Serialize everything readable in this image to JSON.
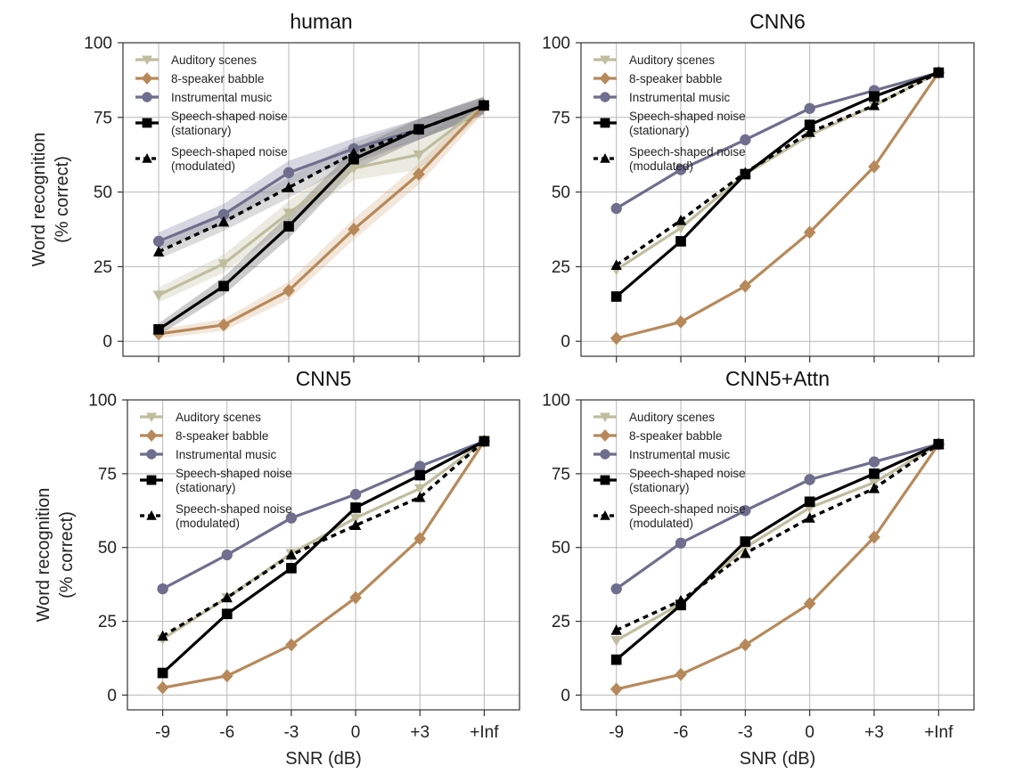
{
  "figure": {
    "xlabel": "SNR (dB)",
    "ylabel_line1": "Word recognition",
    "ylabel_line2": "(% correct)"
  },
  "chart_data": [
    {
      "type": "line",
      "title": "human",
      "categories": [
        "-9",
        "-6",
        "-3",
        "0",
        "+3",
        "+Inf"
      ],
      "ylim": [
        -5,
        100
      ],
      "yticks": [
        0,
        25,
        50,
        75,
        100
      ],
      "grid": true,
      "legend_position": "top-left",
      "series": [
        {
          "name": "Auditory scenes",
          "values": [
            15.5,
            26,
            43,
            58,
            62.5,
            79
          ]
        },
        {
          "name": "8-speaker babble",
          "values": [
            2.5,
            5.5,
            17,
            37.5,
            56,
            79
          ]
        },
        {
          "name": "Instrumental music",
          "values": [
            33.5,
            42.5,
            56.5,
            64.5,
            71,
            79
          ]
        },
        {
          "name": "Speech-shaped noise\n(stationary)",
          "values": [
            4,
            18.5,
            38.5,
            61,
            71,
            79
          ]
        },
        {
          "name": "Speech-shaped noise\n(modulated)",
          "values": [
            30,
            40,
            51.5,
            63,
            71,
            79
          ]
        }
      ]
    },
    {
      "type": "line",
      "title": "CNN6",
      "categories": [
        "-9",
        "-6",
        "-3",
        "0",
        "+3",
        "+Inf"
      ],
      "ylim": [
        -5,
        100
      ],
      "yticks": [
        0,
        25,
        50,
        75,
        100
      ],
      "grid": true,
      "legend_position": "top-left",
      "series": [
        {
          "name": "Auditory scenes",
          "values": [
            24,
            38,
            56,
            69,
            79,
            90
          ]
        },
        {
          "name": "8-speaker babble",
          "values": [
            1,
            6.5,
            18.5,
            36.5,
            58.5,
            90
          ]
        },
        {
          "name": "Instrumental music",
          "values": [
            44.5,
            57.5,
            67.5,
            78,
            84,
            90
          ]
        },
        {
          "name": "Speech-shaped noise\n(stationary)",
          "values": [
            15,
            33.5,
            56,
            72.5,
            82,
            90
          ]
        },
        {
          "name": "Speech-shaped noise\n(modulated)",
          "values": [
            25.5,
            40.5,
            56.5,
            70,
            79,
            90
          ]
        }
      ]
    },
    {
      "type": "line",
      "title": "CNN5",
      "categories": [
        "-9",
        "-6",
        "-3",
        "0",
        "+3",
        "+Inf"
      ],
      "ylim": [
        -5,
        100
      ],
      "yticks": [
        0,
        25,
        50,
        75,
        100
      ],
      "grid": true,
      "legend_position": "top-left",
      "series": [
        {
          "name": "Auditory scenes",
          "values": [
            19,
            33,
            48,
            60,
            70,
            86
          ]
        },
        {
          "name": "8-speaker babble",
          "values": [
            2.5,
            6.5,
            17,
            33,
            53,
            86
          ]
        },
        {
          "name": "Instrumental music",
          "values": [
            36,
            47.5,
            60,
            68,
            77.5,
            86
          ]
        },
        {
          "name": "Speech-shaped noise\n(stationary)",
          "values": [
            7.5,
            27.5,
            43,
            63.5,
            74.5,
            86
          ]
        },
        {
          "name": "Speech-shaped noise\n(modulated)",
          "values": [
            20,
            33,
            47.5,
            57.5,
            67,
            86
          ]
        }
      ]
    },
    {
      "type": "line",
      "title": "CNN5+Attn",
      "categories": [
        "-9",
        "-6",
        "-3",
        "0",
        "+3",
        "+Inf"
      ],
      "ylim": [
        -5,
        100
      ],
      "yticks": [
        0,
        25,
        50,
        75,
        100
      ],
      "grid": true,
      "legend_position": "top-left",
      "series": [
        {
          "name": "Auditory scenes",
          "values": [
            18.5,
            31,
            50,
            63.5,
            72,
            85
          ]
        },
        {
          "name": "8-speaker babble",
          "values": [
            2,
            7,
            17,
            31,
            53.5,
            85
          ]
        },
        {
          "name": "Instrumental music",
          "values": [
            36,
            51.5,
            62.5,
            73,
            79,
            85
          ]
        },
        {
          "name": "Speech-shaped noise\n(stationary)",
          "values": [
            12,
            30.5,
            52,
            65.5,
            75,
            85
          ]
        },
        {
          "name": "Speech-shaped noise\n(modulated)",
          "values": [
            22,
            32,
            48,
            60,
            70,
            85
          ]
        }
      ]
    }
  ],
  "series_styles": [
    {
      "color": "#bfbd9e",
      "marker": "triangle-down",
      "dash": false
    },
    {
      "color": "#b7895a",
      "marker": "diamond",
      "dash": false
    },
    {
      "color": "#6f6e8e",
      "marker": "circle",
      "dash": false
    },
    {
      "color": "#000000",
      "marker": "square",
      "dash": false
    },
    {
      "color": "#000000",
      "marker": "triangle-up",
      "dash": true
    }
  ],
  "bands": {
    "panel": 0,
    "colors": [
      "#bfbd9e",
      "#d7ae87",
      "#7b7aa0",
      "#555555",
      "#888888"
    ],
    "halfwidths": [
      [
        2.5,
        3,
        4,
        4,
        5,
        2.5
      ],
      [
        1.5,
        2,
        3,
        3.5,
        3.5,
        2.5
      ],
      [
        3,
        3.5,
        4,
        3.5,
        3.5,
        2.5
      ],
      [
        2,
        3,
        4,
        3.5,
        3.5,
        3
      ],
      [
        2.5,
        3,
        3.5,
        3.5,
        3.5,
        3
      ]
    ]
  }
}
